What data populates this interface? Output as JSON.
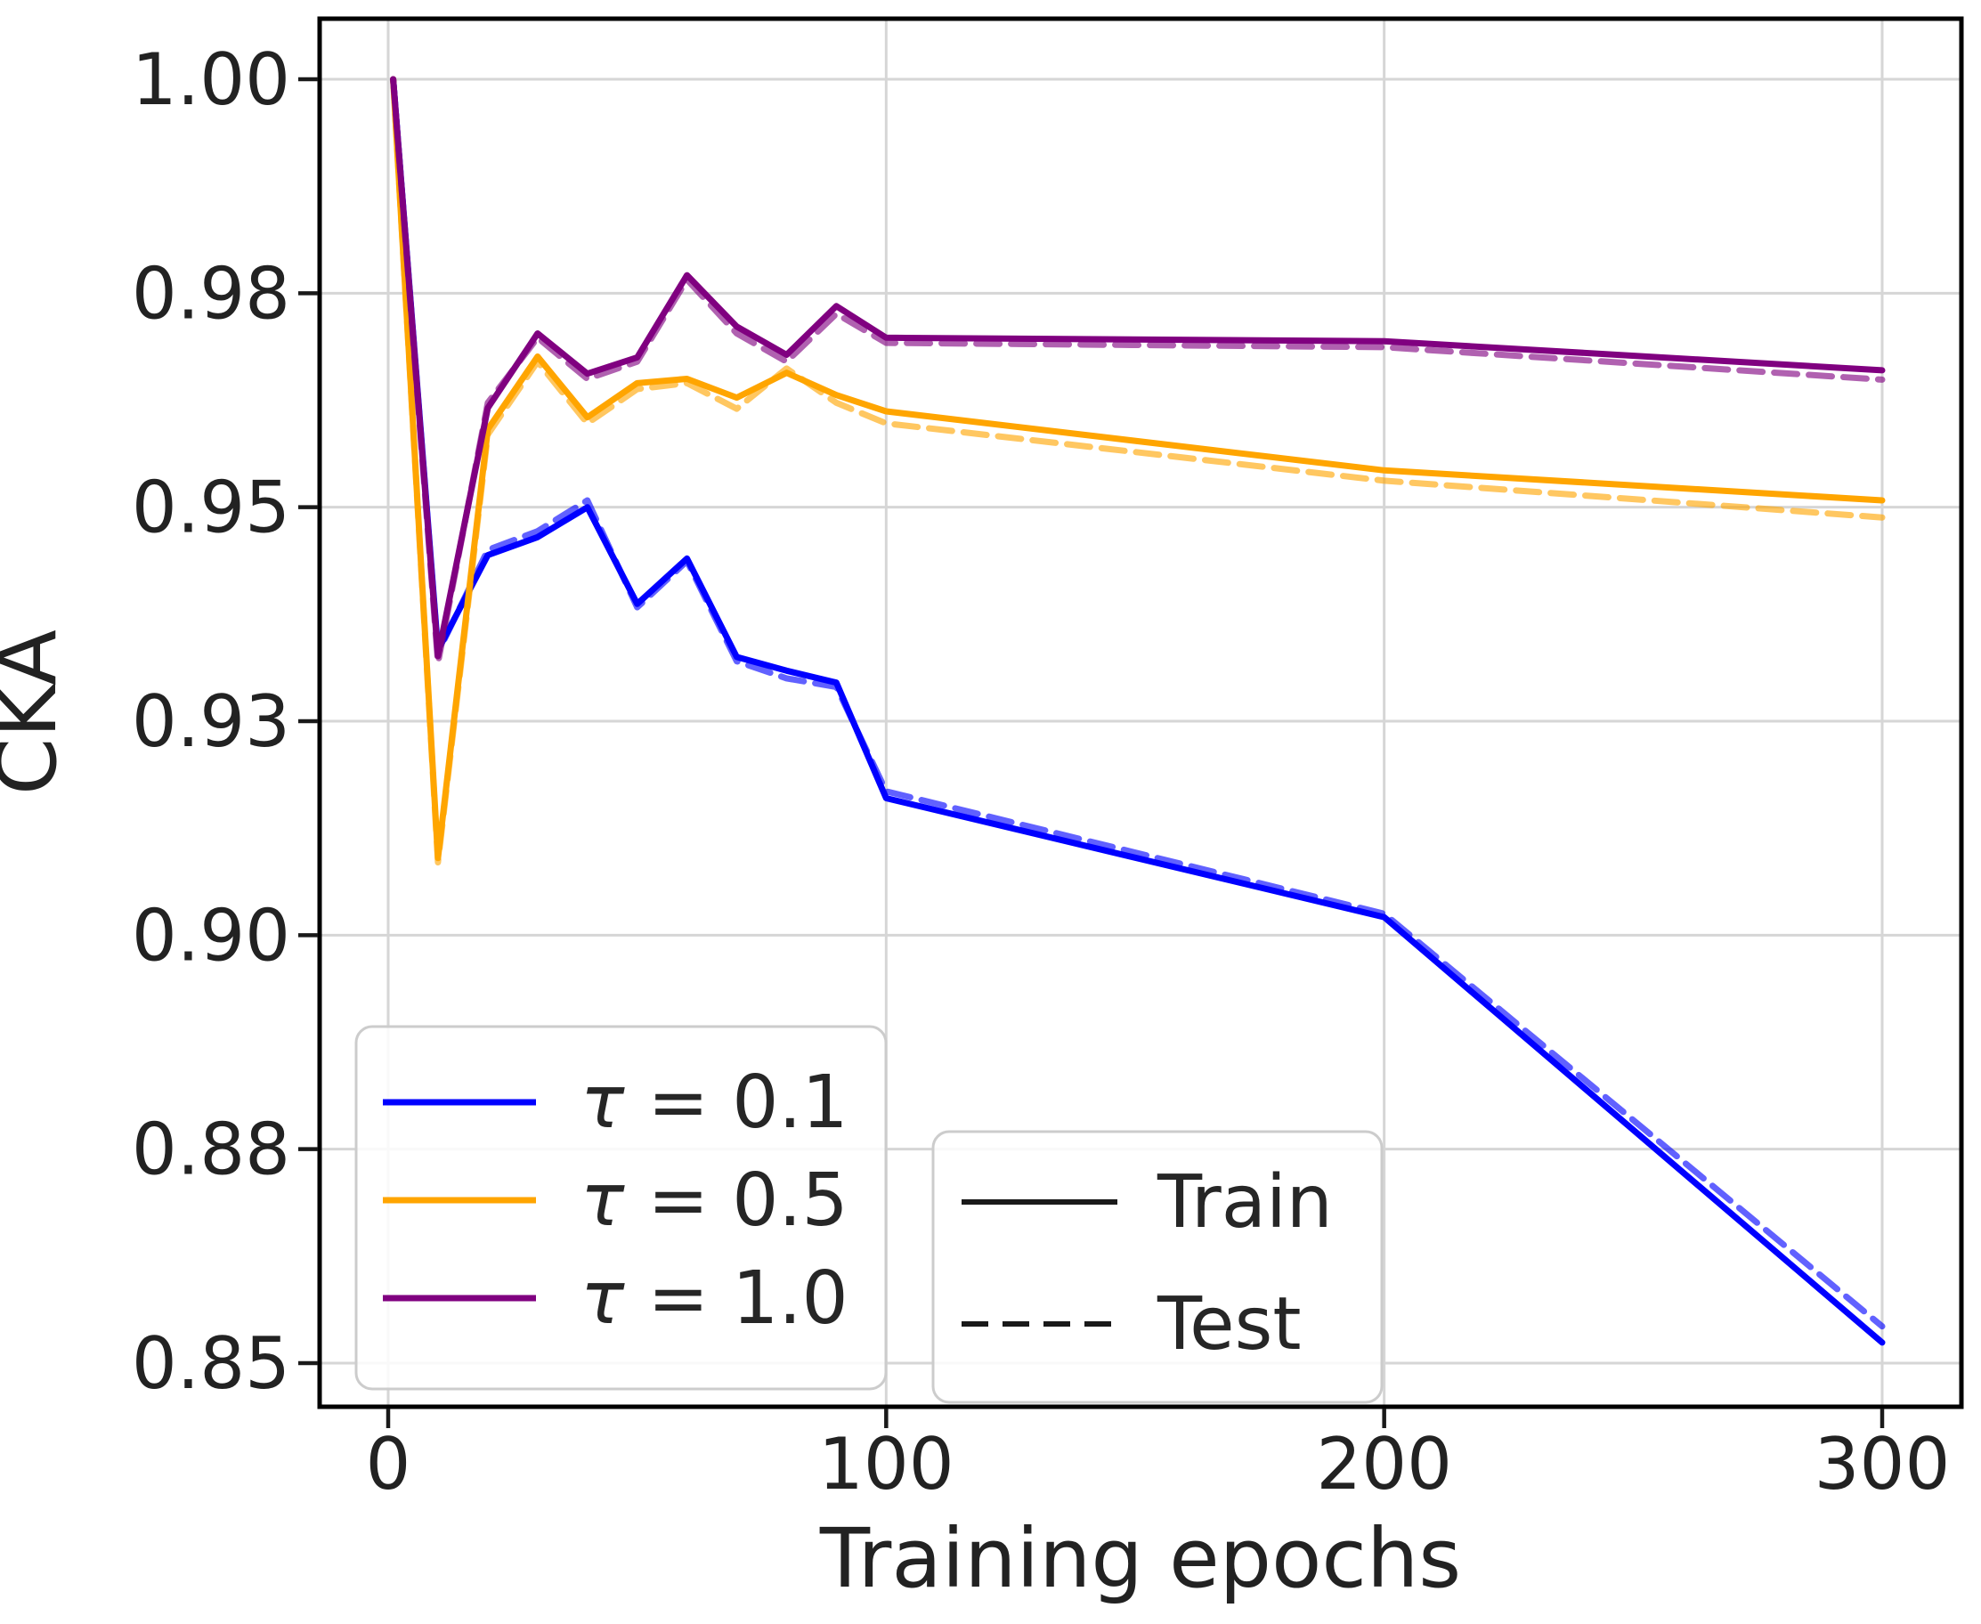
{
  "figure": {
    "background": "#ffffff"
  },
  "axes": {
    "xlabel": "Training epochs",
    "ylabel": "CKA",
    "x_ticks": [
      {
        "v": 0,
        "label": "0"
      },
      {
        "v": 100,
        "label": "100"
      },
      {
        "v": 200,
        "label": "200"
      },
      {
        "v": 300,
        "label": "300"
      }
    ],
    "y_ticks": [
      {
        "v": 0.85,
        "label": "0.85"
      },
      {
        "v": 0.875,
        "label": "0.88"
      },
      {
        "v": 0.9,
        "label": "0.90"
      },
      {
        "v": 0.925,
        "label": "0.93"
      },
      {
        "v": 0.95,
        "label": "0.95"
      },
      {
        "v": 0.975,
        "label": "0.98"
      },
      {
        "v": 1.0,
        "label": "1.00"
      }
    ],
    "grid": true,
    "grid_color": "#d6d6d6",
    "spine_color": "#000000",
    "tick_color": "#1a1a1a",
    "text_color": "#222222"
  },
  "chart_data": {
    "type": "line",
    "title": "",
    "xlabel": "Training epochs",
    "ylabel": "CKA",
    "xlim": [
      0,
      300
    ],
    "ylim": [
      0.845,
      1.007
    ],
    "grid": true,
    "legend_position": "lower left",
    "x": [
      1,
      10,
      20,
      30,
      40,
      50,
      60,
      70,
      80,
      90,
      100,
      200,
      300
    ],
    "series": [
      {
        "name": "τ = 0.1 Train",
        "tau": "τ = 0.1",
        "split": "Train",
        "color": "#0000ff",
        "style": "solid",
        "opacity": 1,
        "values": [
          1.0,
          0.9333,
          0.9444,
          0.9465,
          0.95,
          0.9387,
          0.944,
          0.9325,
          0.9309,
          0.9295,
          0.916,
          0.9021,
          0.8524
        ]
      },
      {
        "name": "τ = 0.1 Test",
        "tau": "τ = 0.1",
        "split": "Test",
        "color": "#0000ff",
        "style": "dashed",
        "opacity": 0.62,
        "values": [
          1.0,
          0.933,
          0.945,
          0.9472,
          0.9508,
          0.9383,
          0.9437,
          0.932,
          0.93,
          0.929,
          0.9168,
          0.9025,
          0.8543
        ]
      },
      {
        "name": "τ = 0.5 Train",
        "tau": "τ = 0.5",
        "split": "Train",
        "color": "#ffa500",
        "style": "solid",
        "opacity": 1,
        "values": [
          1.0,
          0.909,
          0.9591,
          0.9676,
          0.9605,
          0.9645,
          0.965,
          0.9628,
          0.9657,
          0.9631,
          0.9612,
          0.9543,
          0.9508
        ]
      },
      {
        "name": "τ = 0.5 Test",
        "tau": "τ = 0.5",
        "split": "Test",
        "color": "#ffa500",
        "style": "dashed",
        "opacity": 0.62,
        "values": [
          1.0,
          0.9085,
          0.9585,
          0.967,
          0.9598,
          0.9638,
          0.9645,
          0.9615,
          0.9662,
          0.9622,
          0.9598,
          0.9531,
          0.9488
        ]
      },
      {
        "name": "τ = 1.0 Train",
        "tau": "τ = 1.0",
        "split": "Train",
        "color": "#800080",
        "style": "solid",
        "opacity": 1,
        "values": [
          1.0,
          0.9326,
          0.9616,
          0.9703,
          0.9656,
          0.9675,
          0.9771,
          0.9711,
          0.9678,
          0.9735,
          0.9698,
          0.9694,
          0.966
        ]
      },
      {
        "name": "τ = 1.0 Test",
        "tau": "τ = 1.0",
        "split": "Test",
        "color": "#800080",
        "style": "dashed",
        "opacity": 0.62,
        "values": [
          1.0,
          0.9318,
          0.9622,
          0.9698,
          0.965,
          0.967,
          0.9766,
          0.9703,
          0.967,
          0.9726,
          0.9692,
          0.9687,
          0.9649
        ]
      }
    ]
  },
  "legends": {
    "tau": {
      "items": [
        {
          "label": "τ = 0.1",
          "color": "#0000ff"
        },
        {
          "label": "τ = 0.5",
          "color": "#ffa500"
        },
        {
          "label": "τ = 1.0",
          "color": "#800080"
        }
      ]
    },
    "split": {
      "items": [
        {
          "label": "Train",
          "style": "solid"
        },
        {
          "label": "Test",
          "style": "dashed"
        }
      ]
    }
  }
}
